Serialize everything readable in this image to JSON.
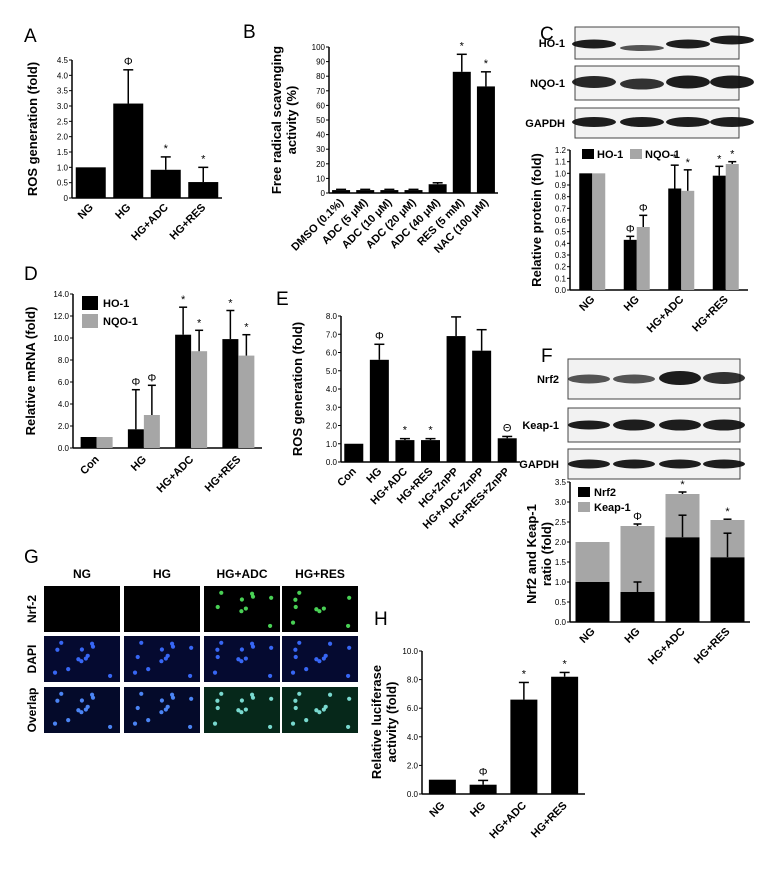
{
  "chart_data": [
    {
      "panel": "A",
      "type": "bar",
      "ylabel": "ROS generation (fold)",
      "ylim": [
        0,
        4.5
      ],
      "yticks": [
        "0",
        "0.5",
        "1.0",
        "1.5",
        "2.0",
        "2.5",
        "3.0",
        "3.5",
        "4.0",
        "4.5"
      ],
      "categories": [
        "NG",
        "HG",
        "HG+ADC",
        "HG+RES"
      ],
      "values": [
        1.0,
        3.08,
        0.92,
        0.52
      ],
      "errors": [
        0,
        1.1,
        0.42,
        0.48
      ],
      "annotations": [
        "",
        "Φ",
        "*",
        "*"
      ],
      "colors": [
        "#000000"
      ]
    },
    {
      "panel": "B",
      "type": "bar",
      "ylabel": "Free radical scavenging activity (%)",
      "ylabel_lines": [
        "Free radical scavenging",
        "activity (%)"
      ],
      "ylim": [
        0,
        100
      ],
      "yticks": [
        "0",
        "10",
        "20",
        "30",
        "40",
        "50",
        "60",
        "70",
        "80",
        "90",
        "100"
      ],
      "categories": [
        "DMSO (0.1%)",
        "ADC (5 μM)",
        "ADC (10 μM)",
        "ADC (20 μM)",
        "ADC (40 μM)",
        "RES (5 mM)",
        "NAC (100 μM)"
      ],
      "values": [
        2,
        2,
        2,
        2,
        6,
        83,
        73
      ],
      "errors": [
        0.5,
        0.5,
        0.5,
        0.5,
        1,
        12,
        10
      ],
      "annotations": [
        "",
        "",
        "",
        "",
        "",
        "*",
        "*"
      ]
    },
    {
      "panel": "C",
      "type": "bar",
      "ylabel": "Relative protein (fold)",
      "ylim": [
        0,
        1.2
      ],
      "yticks": [
        "0.0",
        "0.1",
        "0.2",
        "0.3",
        "0.4",
        "0.5",
        "0.6",
        "0.7",
        "0.8",
        "0.9",
        "1.0",
        "1.1",
        "1.2"
      ],
      "categories": [
        "NG",
        "HG",
        "HG+ADC",
        "HG+RES"
      ],
      "series": [
        {
          "name": "HO-1",
          "color": "#000000",
          "values": [
            1.0,
            0.43,
            0.87,
            0.98
          ],
          "errors": [
            0,
            0.03,
            0.2,
            0.08
          ],
          "annotations": [
            "",
            "Φ",
            "*",
            "*"
          ]
        },
        {
          "name": "NQO-1",
          "color": "#a6a6a6",
          "values": [
            1.0,
            0.54,
            0.85,
            1.08
          ],
          "errors": [
            0,
            0.1,
            0.18,
            0.02
          ],
          "annotations": [
            "",
            "Φ",
            "*",
            "*"
          ]
        }
      ],
      "legend": "top"
    },
    {
      "panel": "D",
      "type": "bar",
      "ylabel": "Relative mRNA (fold)",
      "ylim": [
        0,
        14
      ],
      "yticks": [
        "0.0",
        "2.0",
        "4.0",
        "6.0",
        "8.0",
        "10.0",
        "12.0",
        "14.0"
      ],
      "categories": [
        "Con",
        "HG",
        "HG+ADC",
        "HG+RES"
      ],
      "series": [
        {
          "name": "HO-1",
          "color": "#000000",
          "values": [
            1.0,
            1.7,
            10.3,
            9.9
          ],
          "errors": [
            0,
            3.6,
            2.5,
            2.6
          ],
          "annotations": [
            "",
            "Φ",
            "*",
            "*"
          ]
        },
        {
          "name": "NQO-1",
          "color": "#a6a6a6",
          "values": [
            1.0,
            3.0,
            8.8,
            8.4
          ],
          "errors": [
            0,
            2.7,
            1.9,
            1.9
          ],
          "annotations": [
            "",
            "Φ",
            "*",
            "*"
          ]
        }
      ],
      "legend": "top-left"
    },
    {
      "panel": "E",
      "type": "bar",
      "ylabel": "ROS generation (fold)",
      "ylim": [
        0,
        8
      ],
      "yticks": [
        "0.0",
        "1.0",
        "2.0",
        "3.0",
        "4.0",
        "5.0",
        "6.0",
        "7.0",
        "8.0"
      ],
      "categories": [
        "Con",
        "HG",
        "HG+ADC",
        "HG+RES",
        "HG+ZnPP",
        "HG+ADC+ZnPP",
        "HG+RES+ZnPP"
      ],
      "values": [
        1.0,
        5.6,
        1.2,
        1.2,
        6.9,
        6.1,
        1.3
      ],
      "errors": [
        0,
        0.85,
        0.08,
        0.08,
        1.05,
        1.15,
        0.1
      ],
      "annotations": [
        "",
        "Φ",
        "*",
        "*",
        "",
        "",
        "Θ"
      ]
    },
    {
      "panel": "F",
      "type": "bar",
      "ylabel": "Nrf2 and Keap-1 ratio (fold)",
      "ylabel_lines": [
        "Nrf2 and Keap-1",
        "ratio (fold)"
      ],
      "ylim": [
        0,
        3.5
      ],
      "yticks": [
        "0.0",
        "0.5",
        "1.0",
        "1.5",
        "2.0",
        "2.5",
        "3.0",
        "3.5"
      ],
      "categories": [
        "NG",
        "HG",
        "HG+ADC",
        "HG+RES"
      ],
      "stacked": true,
      "series": [
        {
          "name": "Nrf2",
          "color": "#000000",
          "values": [
            1.0,
            0.75,
            2.12,
            1.62
          ],
          "errors": [
            0,
            0.25,
            0.55,
            0.6
          ]
        },
        {
          "name": "Keap-1",
          "color": "#a6a6a6",
          "values": [
            1.0,
            1.65,
            1.08,
            0.93
          ],
          "errors": [
            0,
            0.05,
            0.05,
            0.02
          ]
        }
      ],
      "annotations": [
        "",
        "Φ",
        "*",
        "*"
      ],
      "legend": "top-left"
    },
    {
      "panel": "H",
      "type": "bar",
      "ylabel": "Relative luciferase activity (fold)",
      "ylabel_lines": [
        "Relative luciferase",
        "activity (fold)"
      ],
      "ylim": [
        0,
        10
      ],
      "yticks": [
        "0.0",
        "2.0",
        "4.0",
        "6.0",
        "8.0",
        "10.0"
      ],
      "categories": [
        "NG",
        "HG",
        "HG+ADC",
        "HG+RES"
      ],
      "values": [
        1.0,
        0.65,
        6.6,
        8.2
      ],
      "errors": [
        0,
        0.3,
        1.2,
        0.3
      ],
      "annotations": [
        "",
        "Φ",
        "*",
        "*"
      ]
    }
  ],
  "panel_letters": [
    "A",
    "B",
    "C",
    "D",
    "E",
    "F",
    "G",
    "H"
  ],
  "blots_c": {
    "labels": [
      "HO-1",
      "NQO-1",
      "GAPDH"
    ]
  },
  "blots_f": {
    "labels": [
      "Nrf2",
      "Keap-1",
      "GAPDH"
    ]
  },
  "micrographs": {
    "columns": [
      "NG",
      "HG",
      "HG+ADC",
      "HG+RES"
    ],
    "rows": [
      "Nrf-2",
      "DAPI",
      "Overlap"
    ]
  }
}
